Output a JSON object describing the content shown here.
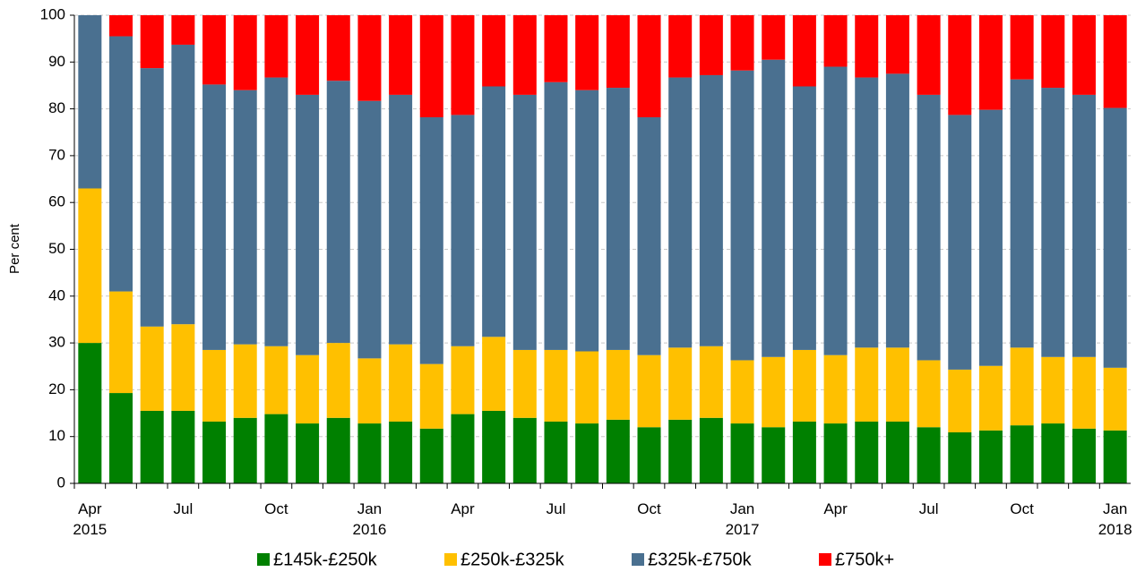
{
  "chart_data": {
    "type": "stacked_bar",
    "y_label": "Per cent",
    "categories": [
      "Apr 2015",
      null,
      null,
      "Jul",
      null,
      null,
      "Oct",
      null,
      null,
      "Jan 2016",
      null,
      null,
      "Apr",
      null,
      null,
      "Jul",
      null,
      null,
      "Oct",
      null,
      null,
      "Jan 2017",
      null,
      null,
      "Apr",
      null,
      null,
      "Jul",
      null,
      null,
      "Oct",
      null,
      null,
      "Jan 2018"
    ],
    "series": [
      {
        "name": "£145k-£250k",
        "color": "#008000",
        "values": [
          30,
          19.3,
          15.5,
          15.5,
          13.2,
          14,
          14.8,
          12.8,
          14,
          12.8,
          13.2,
          11.7,
          14.8,
          15.5,
          14,
          13.2,
          12.8,
          13.6,
          12,
          13.6,
          14,
          12.8,
          12,
          13.2,
          12.8,
          13.2,
          13.2,
          12,
          10.9,
          11.3,
          12.4,
          12.8,
          11.7,
          11.3
        ]
      },
      {
        "name": "£250k-£325k",
        "color": "#ffc000",
        "values": [
          33,
          21.7,
          18,
          18.5,
          15.3,
          15.7,
          14.5,
          14.6,
          16,
          13.9,
          16.5,
          13.8,
          14.5,
          15.8,
          14.5,
          15.3,
          15.4,
          14.9,
          15.4,
          15.4,
          15.3,
          13.5,
          15,
          15.3,
          14.6,
          15.8,
          15.8,
          14.3,
          13.4,
          13.8,
          16.6,
          14.2,
          15.3,
          13.4
        ]
      },
      {
        "name": "£325k-£750k",
        "color": "#4a7090",
        "values": [
          37,
          54.5,
          55.2,
          59.7,
          56.7,
          54.3,
          57.4,
          55.6,
          56,
          55,
          53.3,
          52.7,
          49.4,
          53.5,
          54.5,
          57.2,
          55.8,
          56,
          50.8,
          57.7,
          57.9,
          61.9,
          63.5,
          56.3,
          61.6,
          57.7,
          58.5,
          56.7,
          54.4,
          54.7,
          57.3,
          57.5,
          56,
          55.5
        ]
      },
      {
        "name": "£750k+",
        "color": "#ff0000",
        "values": [
          0,
          4.5,
          11.3,
          6.3,
          14.8,
          16,
          13.3,
          17,
          14,
          18.3,
          17,
          21.8,
          21.3,
          15.2,
          17,
          14.3,
          16,
          15.5,
          21.8,
          13.3,
          12.8,
          11.8,
          9.5,
          15.2,
          11,
          13.3,
          12.5,
          17,
          21.3,
          20.2,
          13.7,
          15.5,
          17,
          19.8
        ]
      }
    ],
    "ylim": [
      0,
      100
    ],
    "yticks": [
      0,
      10,
      20,
      30,
      40,
      50,
      60,
      70,
      80,
      90,
      100
    ],
    "grid": true
  }
}
